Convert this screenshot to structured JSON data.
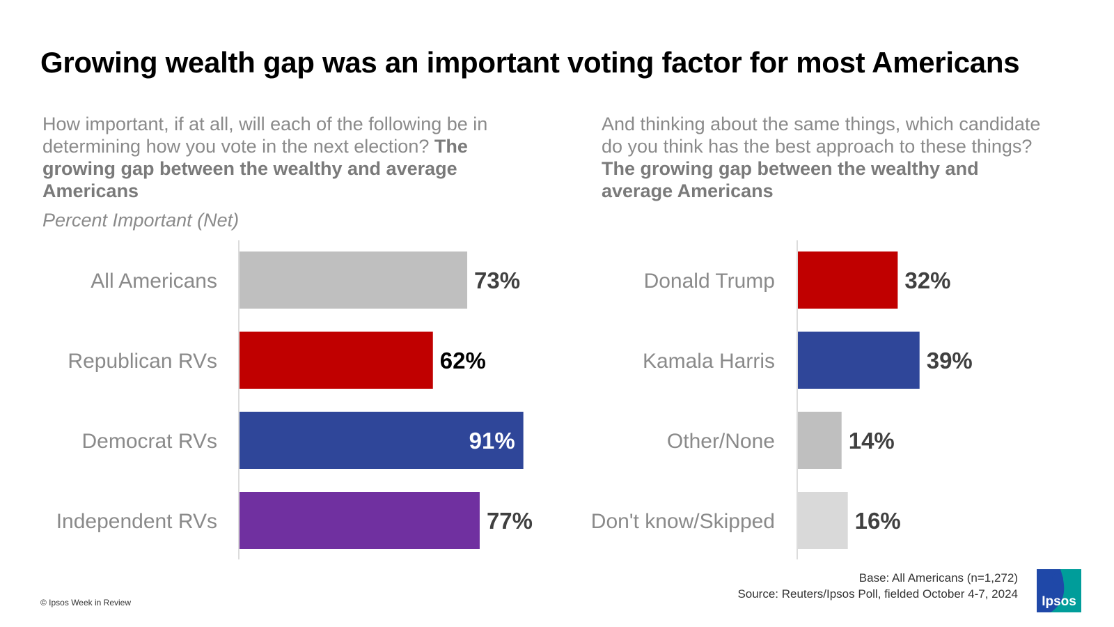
{
  "title": "Growing wealth gap was an important voting factor for most Americans",
  "left_question": {
    "text": "How important, if at all, will each of the following be in determining how you vote in the next election?",
    "bold": "The growing gap between the wealthy and average Americans"
  },
  "left_subtitle": "Percent Important (Net)",
  "right_question": {
    "text": "And thinking about the same things, which candidate do you think has the best approach to these things?",
    "bold": "The growing gap between the wealthy and average Americans"
  },
  "footer": {
    "base": "Base: All Americans (n=1,272)",
    "source": "Source: Reuters/Ipsos Poll, fielded October 4-7, 2024",
    "copyright": "© Ipsos Week in Review",
    "logo_text": "Ipsos"
  },
  "colors": {
    "gray": "#bfbfbf",
    "republican_red": "#c00000",
    "democrat_blue": "#2f4699",
    "independent_purple": "#7030a0",
    "light_gray": "#d9d9d9",
    "logo_teal": "#009d9a",
    "logo_blue": "#1f48a8"
  },
  "chart_data": [
    {
      "type": "bar",
      "orientation": "horizontal",
      "categories": [
        "All Americans",
        "Republican RVs",
        "Democrat RVs",
        "Independent RVs"
      ],
      "values": [
        73,
        62,
        91,
        77
      ],
      "value_labels": [
        "73%",
        "62%",
        "91%",
        "77%"
      ],
      "colors": [
        "#bfbfbf",
        "#c00000",
        "#2f4699",
        "#7030a0"
      ],
      "label_colors": [
        "#404040",
        "#000000",
        "#ffffff",
        "#404040"
      ],
      "label_inside": [
        false,
        false,
        true,
        false
      ],
      "xlim": [
        0,
        100
      ],
      "grid": false
    },
    {
      "type": "bar",
      "orientation": "horizontal",
      "categories": [
        "Donald Trump",
        "Kamala Harris",
        "Other/None",
        "Don't know/Skipped"
      ],
      "values": [
        32,
        39,
        14,
        16
      ],
      "value_labels": [
        "32%",
        "39%",
        "14%",
        "16%"
      ],
      "colors": [
        "#c00000",
        "#2f4699",
        "#bfbfbf",
        "#d9d9d9"
      ],
      "label_colors": [
        "#404040",
        "#404040",
        "#404040",
        "#404040"
      ],
      "label_inside": [
        false,
        false,
        false,
        false
      ],
      "xlim": [
        0,
        100
      ],
      "grid": false
    }
  ]
}
